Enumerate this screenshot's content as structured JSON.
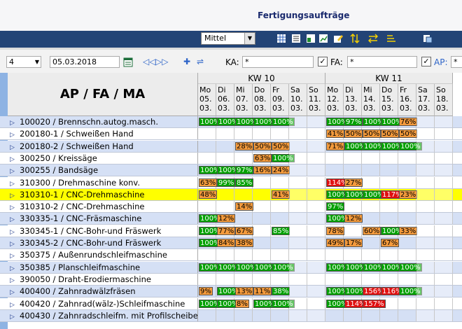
{
  "window": {
    "title": "Fertigungsaufträge"
  },
  "toolbar": {
    "zoom_select": "Mittel"
  },
  "filter": {
    "count": "4",
    "date": "05.03.2018",
    "ka_label": "KA:",
    "ka_value": "*",
    "fa_label": "FA:",
    "fa_value": "*",
    "ap_label": "AP:",
    "ap_value": "*",
    "fa_checked": "✓",
    "ap_checked": "✓"
  },
  "grid": {
    "header": "AP / FA / MA",
    "weeks": [
      "KW 10",
      "KW 11"
    ],
    "days": [
      [
        "Mo",
        "05.",
        "03."
      ],
      [
        "Di",
        "06.",
        "03."
      ],
      [
        "Mi",
        "07.",
        "03."
      ],
      [
        "Do",
        "08.",
        "03."
      ],
      [
        "Fr",
        "09.",
        "03."
      ],
      [
        "Sa",
        "10.",
        "03."
      ],
      [
        "So",
        "11.",
        "03."
      ],
      [
        "Mo",
        "12.",
        "03."
      ],
      [
        "Di",
        "13.",
        "03."
      ],
      [
        "Mi",
        "14.",
        "03."
      ],
      [
        "Do",
        "15.",
        "03."
      ],
      [
        "Fr",
        "16.",
        "03."
      ],
      [
        "Sa",
        "17.",
        "03."
      ],
      [
        "So",
        "18.",
        "03."
      ]
    ],
    "rows": [
      {
        "label": "100020 / Brennschn.autog.masch.",
        "bg": "#d5e0f5",
        "cells": [
          [
            "100%",
            "g"
          ],
          [
            "100%",
            "g"
          ],
          [
            "100%",
            "g"
          ],
          [
            "100%",
            "g"
          ],
          [
            "100%",
            "g"
          ],
          [
            "",
            ""
          ],
          [
            "",
            ""
          ],
          [
            "100%",
            "g"
          ],
          [
            "97%",
            "g"
          ],
          [
            "100%",
            "g"
          ],
          [
            "100%",
            "g"
          ],
          [
            "76%",
            "o"
          ],
          [
            "",
            ""
          ],
          [
            "",
            ""
          ]
        ]
      },
      {
        "label": "200180-1 / Schweißen Hand",
        "bg": "#ffffff",
        "cells": [
          [
            "",
            ""
          ],
          [
            "",
            ""
          ],
          [
            "",
            ""
          ],
          [
            "",
            ""
          ],
          [
            "",
            ""
          ],
          [
            "",
            ""
          ],
          [
            "",
            ""
          ],
          [
            "41%",
            "o"
          ],
          [
            "50%",
            "o"
          ],
          [
            "50%",
            "o"
          ],
          [
            "50%",
            "o"
          ],
          [
            "50%",
            "o"
          ],
          [
            "",
            ""
          ],
          [
            "",
            ""
          ]
        ]
      },
      {
        "label": "200180-2 / Schweißen Hand",
        "bg": "#d5e0f5",
        "cells": [
          [
            "",
            ""
          ],
          [
            "",
            ""
          ],
          [
            "28%",
            "o"
          ],
          [
            "50%",
            "o"
          ],
          [
            "50%",
            "o"
          ],
          [
            "",
            ""
          ],
          [
            "",
            ""
          ],
          [
            "71%",
            "o"
          ],
          [
            "100%",
            "g"
          ],
          [
            "100%",
            "g"
          ],
          [
            "100%",
            "g"
          ],
          [
            "100%",
            "g"
          ],
          [
            "",
            ""
          ],
          [
            "",
            ""
          ]
        ]
      },
      {
        "label": "300250 / Kreissäge",
        "bg": "#ffffff",
        "cells": [
          [
            "",
            ""
          ],
          [
            "",
            ""
          ],
          [
            "",
            ""
          ],
          [
            "63%",
            "o"
          ],
          [
            "100%",
            "g"
          ],
          [
            "",
            ""
          ],
          [
            "",
            ""
          ],
          [
            "",
            ""
          ],
          [
            "",
            ""
          ],
          [
            "",
            ""
          ],
          [
            "",
            ""
          ],
          [
            "",
            ""
          ],
          [
            "",
            ""
          ],
          [
            "",
            ""
          ]
        ]
      },
      {
        "label": "300255 / Bandsäge",
        "bg": "#d5e0f5",
        "cells": [
          [
            "100%",
            "g"
          ],
          [
            "100%",
            "g"
          ],
          [
            "97%",
            "g"
          ],
          [
            "16%",
            "o"
          ],
          [
            "24%",
            "o"
          ],
          [
            "",
            ""
          ],
          [
            "",
            ""
          ],
          [
            "",
            ""
          ],
          [
            "",
            ""
          ],
          [
            "",
            ""
          ],
          [
            "",
            ""
          ],
          [
            "",
            ""
          ],
          [
            "",
            ""
          ],
          [
            "",
            ""
          ]
        ]
      },
      {
        "label": "310300 / Drehmaschine konv.",
        "bg": "#ffffff",
        "cells": [
          [
            "63%",
            "o"
          ],
          [
            "99%",
            "g"
          ],
          [
            "85%",
            "g"
          ],
          [
            "",
            ""
          ],
          [
            "",
            ""
          ],
          [
            "",
            ""
          ],
          [
            "",
            ""
          ],
          [
            "114%",
            "r"
          ],
          [
            "27%",
            "o"
          ],
          [
            "",
            ""
          ],
          [
            "",
            ""
          ],
          [
            "",
            ""
          ],
          [
            "",
            ""
          ],
          [
            "",
            ""
          ]
        ]
      },
      {
        "label": "310310-1 / CNC-Drehmaschine",
        "bg": "#ffff00",
        "cells": [
          [
            "48%",
            "o"
          ],
          [
            "",
            ""
          ],
          [
            "",
            ""
          ],
          [
            "",
            ""
          ],
          [
            "41%",
            "o"
          ],
          [
            "",
            ""
          ],
          [
            "",
            ""
          ],
          [
            "100%",
            "g"
          ],
          [
            "100%",
            "g"
          ],
          [
            "100%",
            "g"
          ],
          [
            "117%",
            "r"
          ],
          [
            "23%",
            "o"
          ],
          [
            "",
            ""
          ],
          [
            "",
            ""
          ]
        ]
      },
      {
        "label": "310310-2 / CNC-Drehmaschine",
        "bg": "#ffffff",
        "cells": [
          [
            "",
            ""
          ],
          [
            "",
            ""
          ],
          [
            "14%",
            "o"
          ],
          [
            "",
            ""
          ],
          [
            "",
            ""
          ],
          [
            "",
            ""
          ],
          [
            "",
            ""
          ],
          [
            "97%",
            "g"
          ],
          [
            "",
            ""
          ],
          [
            "",
            ""
          ],
          [
            "",
            ""
          ],
          [
            "",
            ""
          ],
          [
            "",
            ""
          ],
          [
            "",
            ""
          ]
        ]
      },
      {
        "label": "330335-1 / CNC-Fräsmaschine",
        "bg": "#d5e0f5",
        "cells": [
          [
            "100%",
            "g"
          ],
          [
            "12%",
            "o"
          ],
          [
            "",
            ""
          ],
          [
            "",
            ""
          ],
          [
            "",
            ""
          ],
          [
            "",
            ""
          ],
          [
            "",
            ""
          ],
          [
            "100%",
            "g"
          ],
          [
            "12%",
            "o"
          ],
          [
            "",
            ""
          ],
          [
            "",
            ""
          ],
          [
            "",
            ""
          ],
          [
            "",
            ""
          ],
          [
            "",
            ""
          ]
        ]
      },
      {
        "label": "330345-1 / CNC-Bohr-und Fräswerk",
        "bg": "#ffffff",
        "cells": [
          [
            "100%",
            "g"
          ],
          [
            "77%",
            "o"
          ],
          [
            "67%",
            "o"
          ],
          [
            "",
            ""
          ],
          [
            "85%",
            "g"
          ],
          [
            "",
            ""
          ],
          [
            "",
            ""
          ],
          [
            "78%",
            "o"
          ],
          [
            "",
            ""
          ],
          [
            "60%",
            "o"
          ],
          [
            "100%",
            "g"
          ],
          [
            "33%",
            "o"
          ],
          [
            "",
            ""
          ],
          [
            "",
            ""
          ]
        ]
      },
      {
        "label": "330345-2 / CNC-Bohr-und Fräswerk",
        "bg": "#d5e0f5",
        "cells": [
          [
            "100%",
            "g"
          ],
          [
            "84%",
            "o"
          ],
          [
            "38%",
            "o"
          ],
          [
            "",
            ""
          ],
          [
            "",
            ""
          ],
          [
            "",
            ""
          ],
          [
            "",
            ""
          ],
          [
            "49%",
            "o"
          ],
          [
            "17%",
            "o"
          ],
          [
            "",
            ""
          ],
          [
            "67%",
            "o"
          ],
          [
            "",
            ""
          ],
          [
            "",
            ""
          ],
          [
            "",
            ""
          ]
        ]
      },
      {
        "label": "350375 / Außenrundschleifmaschine",
        "bg": "#ffffff",
        "cells": [
          [
            "",
            ""
          ],
          [
            "",
            ""
          ],
          [
            "",
            ""
          ],
          [
            "",
            ""
          ],
          [
            "",
            ""
          ],
          [
            "",
            ""
          ],
          [
            "",
            ""
          ],
          [
            "",
            ""
          ],
          [
            "",
            ""
          ],
          [
            "",
            ""
          ],
          [
            "",
            ""
          ],
          [
            "",
            ""
          ],
          [
            "",
            ""
          ],
          [
            "",
            ""
          ]
        ]
      },
      {
        "label": "350385 / Planschleifmaschine",
        "bg": "#d5e0f5",
        "cells": [
          [
            "100%",
            "g"
          ],
          [
            "100%",
            "g"
          ],
          [
            "100%",
            "g"
          ],
          [
            "100%",
            "g"
          ],
          [
            "100%",
            "g"
          ],
          [
            "",
            ""
          ],
          [
            "",
            ""
          ],
          [
            "100%",
            "g"
          ],
          [
            "100%",
            "g"
          ],
          [
            "100%",
            "g"
          ],
          [
            "100%",
            "g"
          ],
          [
            "100%",
            "g"
          ],
          [
            "",
            ""
          ],
          [
            "",
            ""
          ]
        ]
      },
      {
        "label": "390050 / Draht-Erodiermaschine",
        "bg": "#ffffff",
        "cells": [
          [
            "",
            ""
          ],
          [
            "",
            ""
          ],
          [
            "",
            ""
          ],
          [
            "",
            ""
          ],
          [
            "",
            ""
          ],
          [
            "",
            ""
          ],
          [
            "",
            ""
          ],
          [
            "",
            ""
          ],
          [
            "",
            ""
          ],
          [
            "",
            ""
          ],
          [
            "",
            ""
          ],
          [
            "",
            ""
          ],
          [
            "",
            ""
          ],
          [
            "",
            ""
          ]
        ]
      },
      {
        "label": "400400 / Zahnradwälzfräsen",
        "bg": "#d5e0f5",
        "cells": [
          [
            "9%",
            "o"
          ],
          [
            "100%",
            "g"
          ],
          [
            "13%",
            "o"
          ],
          [
            "11%",
            "o"
          ],
          [
            "38%",
            "g"
          ],
          [
            "",
            ""
          ],
          [
            "",
            ""
          ],
          [
            "100%",
            "g"
          ],
          [
            "100%",
            "g"
          ],
          [
            "156%",
            "r"
          ],
          [
            "116%",
            "r"
          ],
          [
            "100%",
            "g"
          ],
          [
            "",
            ""
          ],
          [
            "",
            ""
          ]
        ]
      },
      {
        "label": "400420 / Zahnrad(wälz-)Schleifmaschine",
        "bg": "#ffffff",
        "cells": [
          [
            "100%",
            "g"
          ],
          [
            "100%",
            "g"
          ],
          [
            "8%",
            "o"
          ],
          [
            "100%",
            "g"
          ],
          [
            "100%",
            "g"
          ],
          [
            "",
            ""
          ],
          [
            "",
            ""
          ],
          [
            "100%",
            "g"
          ],
          [
            "114%",
            "r"
          ],
          [
            "157%",
            "r"
          ],
          [
            "",
            ""
          ],
          [
            "",
            ""
          ],
          [
            "",
            ""
          ],
          [
            "",
            ""
          ]
        ]
      },
      {
        "label": "400430 / Zahnradschleifm. mit Profilscheibe",
        "bg": "#d5e0f5",
        "cells": [
          [
            "",
            ""
          ],
          [
            "",
            ""
          ],
          [
            "",
            ""
          ],
          [
            "",
            ""
          ],
          [
            "",
            ""
          ],
          [
            "",
            ""
          ],
          [
            "",
            ""
          ],
          [
            "",
            ""
          ],
          [
            "",
            ""
          ],
          [
            "",
            ""
          ],
          [
            "",
            ""
          ],
          [
            "",
            ""
          ],
          [
            "",
            ""
          ],
          [
            "",
            ""
          ]
        ]
      }
    ]
  }
}
